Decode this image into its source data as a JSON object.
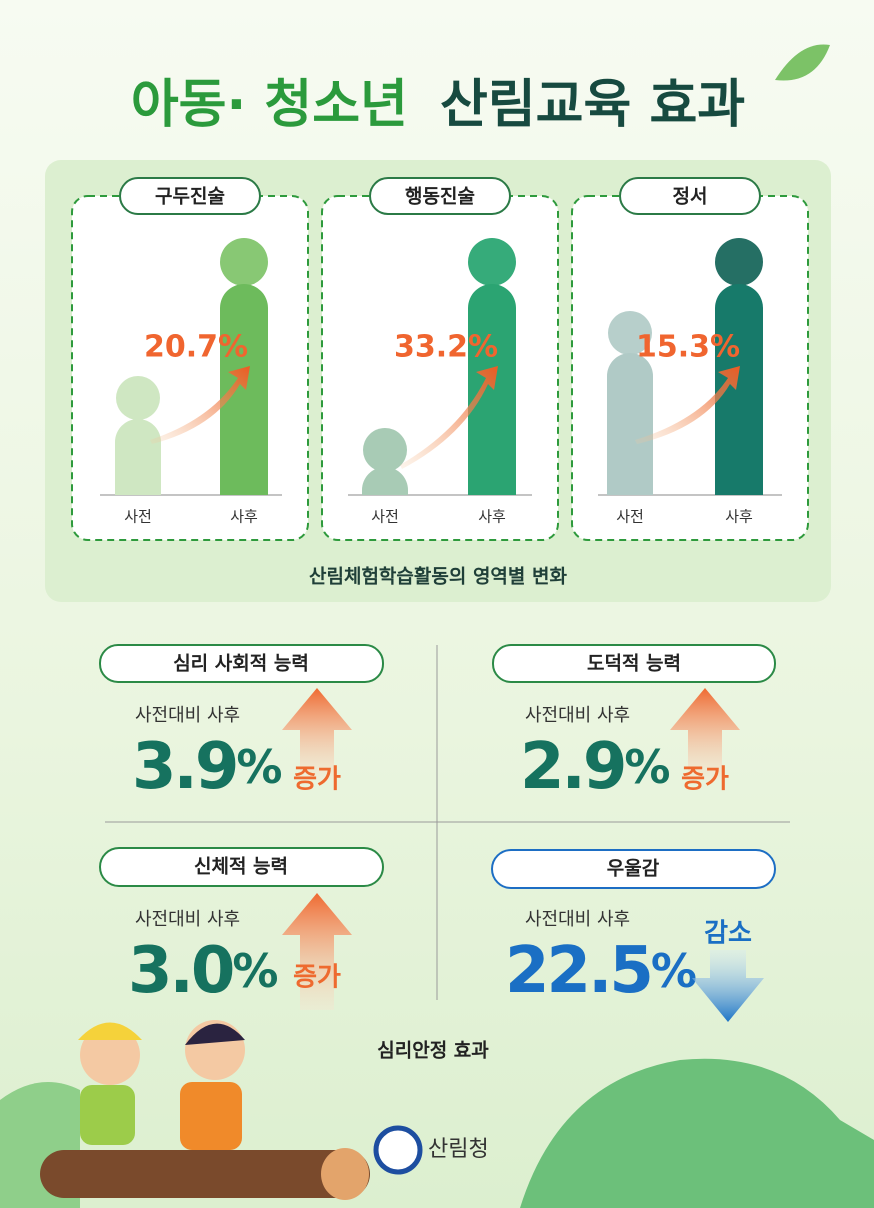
{
  "header": {
    "title_part1": "아동· 청소년",
    "title_part2": "산림교육 효과"
  },
  "domains": {
    "items": [
      {
        "label": "구두진술",
        "change": "20.7%",
        "before": "사전",
        "after": "사후"
      },
      {
        "label": "행동진술",
        "change": "33.2%",
        "before": "사전",
        "after": "사후"
      },
      {
        "label": "정서",
        "change": "15.3%",
        "before": "사전",
        "after": "사후"
      }
    ],
    "caption": "산림체험학습활동의 영역별 변화"
  },
  "effects": {
    "items": [
      {
        "label": "심리 사회적 능력",
        "compare": "사전대비 사후",
        "value": "3.9",
        "unit": "%",
        "direction": "증가"
      },
      {
        "label": "도덕적 능력",
        "compare": "사전대비 사후",
        "value": "2.9",
        "unit": "%",
        "direction": "증가"
      },
      {
        "label": "신체적 능력",
        "compare": "사전대비 사후",
        "value": "3.0",
        "unit": "%",
        "direction": "증가"
      },
      {
        "label": "우울감",
        "compare": "사전대비 사후",
        "value": "22.5",
        "unit": "%",
        "direction": "감소"
      }
    ],
    "caption": "심리안정 효과"
  },
  "footer": {
    "agency": "산림청"
  }
}
